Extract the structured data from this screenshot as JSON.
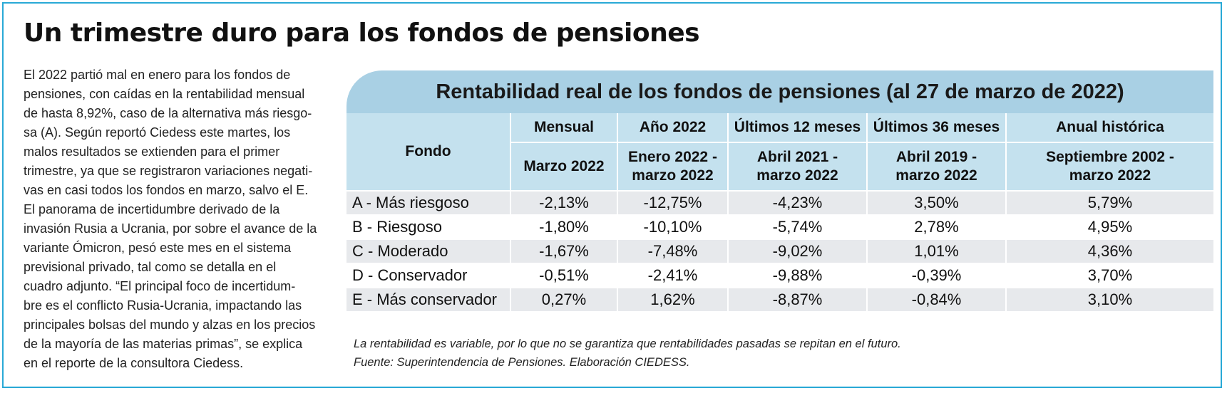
{
  "headline": "Un trimestre duro para los fondos de pensiones",
  "body_lines": [
    "El 2022 partió mal en enero para los fondos de",
    "pensiones, con caídas en la rentabilidad mensual",
    "de hasta 8,92%, caso de la alternativa más riesgo-",
    "sa (A). Según reportó Ciedess este martes, los",
    "malos resultados se extienden para el primer",
    "trimestre, ya que se registraron variaciones negati-",
    "vas en casi todos los fondos en marzo, salvo el E.",
    "El panorama de incertidumbre derivado de la",
    "invasión Rusia a Ucrania, por sobre el avance de la",
    "variante Ómicron, pesó este mes en el sistema",
    "previsional privado, tal como se detalla en el",
    "cuadro adjunto. “El principal foco de incertidum-",
    "bre es el conflicto Rusia-Ucrania, impactando las",
    "principales bolsas del mundo y alzas en los precios",
    "de la mayoría de las materias primas”, se explica",
    "en el reporte de la consultora Ciedess."
  ],
  "table": {
    "title": "Rentabilidad real de los fondos de pensiones  (al 27 de marzo de 2022)",
    "fund_header": "Fondo",
    "columns": [
      {
        "label": "Mensual",
        "period_line1": "Marzo 2022",
        "period_line2": ""
      },
      {
        "label": "Año 2022",
        "period_line1": "Enero 2022 -",
        "period_line2": "marzo 2022"
      },
      {
        "label": "Últimos 12 meses",
        "period_line1": "Abril 2021 -",
        "period_line2": "marzo 2022"
      },
      {
        "label": "Últimos 36 meses",
        "period_line1": "Abril 2019 -",
        "period_line2": "marzo 2022"
      },
      {
        "label": "Anual histórica",
        "period_line1": "Septiembre 2002 -",
        "period_line2": "marzo 2022"
      }
    ],
    "rows": [
      {
        "fund": "A - Más riesgoso",
        "values": [
          "-2,13%",
          "-12,75%",
          "-4,23%",
          "3,50%",
          "5,79%"
        ]
      },
      {
        "fund": "B - Riesgoso",
        "values": [
          "-1,80%",
          "-10,10%",
          "-5,74%",
          "2,78%",
          "4,95%"
        ]
      },
      {
        "fund": "C - Moderado",
        "values": [
          "-1,67%",
          "-7,48%",
          "-9,02%",
          "1,01%",
          "4,36%"
        ]
      },
      {
        "fund": "D - Conservador",
        "values": [
          "-0,51%",
          "-2,41%",
          "-9,88%",
          "-0,39%",
          "3,70%"
        ]
      },
      {
        "fund": "E - Más conservador",
        "values": [
          "0,27%",
          "1,62%",
          "-8,87%",
          "-0,84%",
          "3,10%"
        ]
      }
    ]
  },
  "notes": [
    "La rentabilidad es variable, por lo que no se garantiza que rentabilidades pasadas se repitan en el futuro.",
    "Fuente: Superintendencia de Pensiones. Elaboración CIEDESS."
  ],
  "colors": {
    "frame_border": "#29a9d6",
    "title_bar": "#a9d0e4",
    "header_cells": "#c4e1ee",
    "row_shade": "#e7e9ec"
  }
}
